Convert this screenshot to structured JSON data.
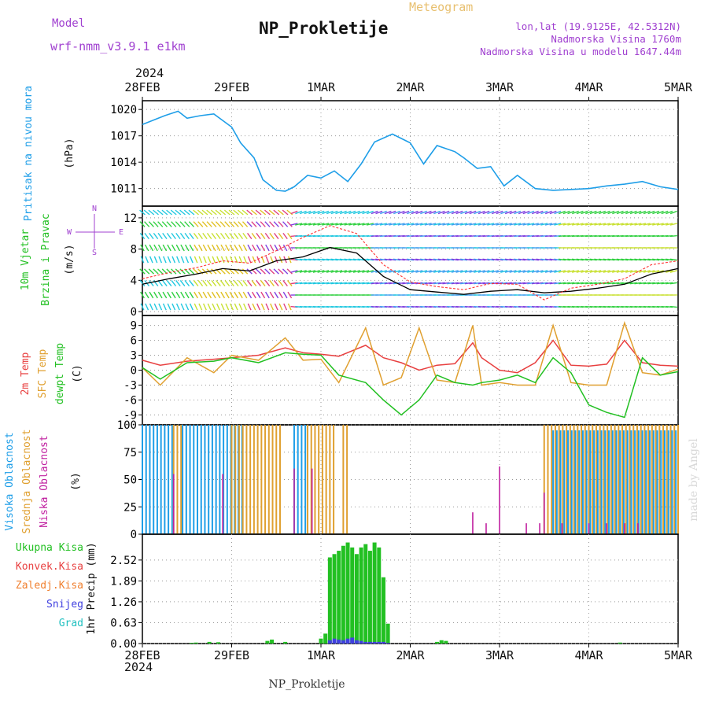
{
  "header": {
    "model_label": "Model",
    "model_name": "wrf-nmm_v3.9.1 e1km",
    "station_title": "NP_Prokletije",
    "meteogram_label": "Meteogram",
    "lonlat": "lon,lat (19.9125E, 42.5312N)",
    "altitude": "Nadmorska Visina 1760m",
    "model_altitude": "Nadmorska Visina u modelu 1647.44m",
    "year_top": "2024",
    "year_bottom": "2024",
    "footer_station": "NP_Prokletije",
    "credit": "made by Angel"
  },
  "colors": {
    "pressure": "#1e9ee8",
    "temp2m": "#e84040",
    "sfc_temp": "#e0a030",
    "dewpt": "#22c022",
    "high_cloud": "#1e9ee8",
    "mid_cloud": "#e0a030",
    "low_cloud": "#c020a0",
    "total_precip": "#22c022",
    "conv_precip": "#e84040",
    "snow": "#4040e0",
    "model_text": "#a040d0"
  },
  "chart_data": [
    {
      "type": "line",
      "panel": "pressure",
      "ylabel": [
        "Pritisak na nivou mora",
        "(hPa)"
      ],
      "x_ticks": [
        "28FEB",
        "29FEB",
        "1MAR",
        "2MAR",
        "3MAR",
        "4MAR",
        "5MAR"
      ],
      "ylim": [
        1009,
        1021
      ],
      "y_ticks": [
        1011,
        1014,
        1017,
        1020
      ],
      "x": [
        0,
        0.25,
        0.4,
        0.5,
        0.65,
        0.8,
        1.0,
        1.1,
        1.25,
        1.35,
        1.5,
        1.6,
        1.7,
        1.85,
        2.0,
        2.15,
        2.3,
        2.45,
        2.6,
        2.8,
        3.0,
        3.15,
        3.3,
        3.5,
        3.6,
        3.75,
        3.9,
        4.05,
        4.2,
        4.4,
        4.6,
        4.8,
        5.0,
        5.2,
        5.4,
        5.6,
        5.8,
        6.0
      ],
      "y": [
        1018.3,
        1019.3,
        1019.8,
        1019.0,
        1019.3,
        1019.5,
        1018.0,
        1016.2,
        1014.5,
        1012.0,
        1010.8,
        1010.7,
        1011.2,
        1012.5,
        1012.2,
        1013.0,
        1011.8,
        1013.8,
        1016.3,
        1017.2,
        1016.2,
        1013.8,
        1015.9,
        1015.2,
        1014.5,
        1013.3,
        1013.5,
        1011.3,
        1012.5,
        1011.0,
        1010.8,
        1010.9,
        1011.0,
        1011.3,
        1011.5,
        1011.8,
        1011.2,
        1010.9
      ]
    },
    {
      "type": "line",
      "panel": "wind",
      "ylabel": [
        "10m Vjetar",
        "Brzina i Pravac",
        "(m/s)"
      ],
      "compass": {
        "n": "N",
        "w": "W",
        "e": "E",
        "s": "S"
      },
      "ylim": [
        -0.5,
        13.5
      ],
      "y_ticks": [
        0,
        4,
        8,
        12
      ],
      "x": [
        0,
        0.3,
        0.6,
        0.9,
        1.2,
        1.5,
        1.8,
        2.1,
        2.4,
        2.7,
        3.0,
        3.3,
        3.6,
        3.9,
        4.2,
        4.5,
        4.8,
        5.1,
        5.4,
        5.7,
        6.0
      ],
      "speed": [
        3.5,
        4.2,
        4.8,
        5.5,
        5.2,
        6.5,
        7.0,
        8.2,
        7.5,
        4.5,
        2.8,
        2.5,
        2.2,
        2.6,
        2.8,
        2.4,
        2.6,
        3.0,
        3.5,
        4.8,
        5.5
      ],
      "gust": [
        4.2,
        5.0,
        5.6,
        6.5,
        6.2,
        7.8,
        9.5,
        11.0,
        10.0,
        6.0,
        3.8,
        3.2,
        2.8,
        3.6,
        3.5,
        1.5,
        3.0,
        3.5,
        4.2,
        6.0,
        6.5
      ]
    },
    {
      "type": "line",
      "panel": "temperature",
      "ylabel": [
        "2m Temp",
        "SFC Temp",
        "dewpt Temp",
        "(C)"
      ],
      "ylim": [
        -11,
        11
      ],
      "y_ticks": [
        -9,
        -6,
        -3,
        0,
        3,
        6,
        9
      ],
      "series": [
        {
          "name": "2m Temp",
          "x": [
            0,
            0.2,
            0.5,
            0.8,
            1.0,
            1.3,
            1.6,
            1.8,
            2.0,
            2.2,
            2.5,
            2.7,
            2.9,
            3.1,
            3.3,
            3.5,
            3.7,
            3.8,
            4.0,
            4.2,
            4.4,
            4.6,
            4.8,
            5.0,
            5.2,
            5.4,
            5.6,
            5.8,
            6.0
          ],
          "values": [
            2.0,
            1.0,
            1.8,
            2.2,
            2.5,
            3.0,
            4.5,
            3.5,
            3.2,
            2.8,
            5.0,
            2.5,
            1.5,
            0.0,
            1.0,
            1.3,
            5.5,
            2.5,
            0.0,
            -0.5,
            1.5,
            6.0,
            1.0,
            0.8,
            1.2,
            6.0,
            1.5,
            1.0,
            0.8
          ]
        },
        {
          "name": "SFC Temp",
          "x": [
            0,
            0.2,
            0.5,
            0.8,
            1.0,
            1.3,
            1.6,
            1.8,
            2.0,
            2.2,
            2.5,
            2.7,
            2.9,
            3.1,
            3.3,
            3.5,
            3.7,
            3.8,
            4.0,
            4.2,
            4.4,
            4.6,
            4.8,
            5.0,
            5.2,
            5.4,
            5.6,
            5.8,
            6.0
          ],
          "values": [
            0.5,
            -3.0,
            2.5,
            -0.5,
            3.0,
            2.0,
            6.5,
            2.0,
            2.2,
            -2.5,
            8.5,
            -3.0,
            -1.5,
            8.5,
            -2.0,
            -2.5,
            9.0,
            -3.0,
            -2.5,
            -3.0,
            -3.0,
            9.0,
            -2.5,
            -3.0,
            -3.0,
            9.5,
            -0.5,
            -1.0,
            0.2
          ]
        },
        {
          "name": "dewpt Temp",
          "x": [
            0,
            0.2,
            0.5,
            0.8,
            1.0,
            1.3,
            1.6,
            1.8,
            2.0,
            2.2,
            2.5,
            2.7,
            2.9,
            3.1,
            3.3,
            3.5,
            3.7,
            3.8,
            4.0,
            4.2,
            4.4,
            4.6,
            4.8,
            5.0,
            5.2,
            5.4,
            5.6,
            5.8,
            6.0
          ],
          "values": [
            0.5,
            -1.8,
            1.5,
            1.8,
            2.5,
            1.5,
            3.5,
            3.2,
            3.0,
            -1.0,
            -2.5,
            -6.0,
            -9.0,
            -6.0,
            -1.0,
            -2.5,
            -3.0,
            -2.5,
            -2.0,
            -1.0,
            -2.5,
            2.5,
            -0.5,
            -7.0,
            -8.5,
            -9.5,
            2.5,
            -1.0,
            -0.3
          ]
        }
      ]
    },
    {
      "type": "bar",
      "panel": "cloud",
      "ylabel": [
        "Visoka Oblacnost",
        "Srednja Oblacnost",
        "Niska Oblacnost",
        "(%)"
      ],
      "ylim": [
        0,
        100
      ],
      "y_ticks": [
        0,
        25,
        50,
        75,
        100
      ],
      "note": "hourly cloud cover; values listed per segment start/end in days from 28FEB",
      "segments": [
        {
          "series": "high",
          "from": 0.0,
          "to": 0.35,
          "value": 100
        },
        {
          "series": "mid",
          "from": 0.35,
          "to": 0.45,
          "value": 100
        },
        {
          "series": "high",
          "from": 0.45,
          "to": 1.15,
          "value": 100
        },
        {
          "series": "mid",
          "from": 1.0,
          "to": 1.55,
          "value": 100
        },
        {
          "series": "high",
          "from": 1.7,
          "to": 1.85,
          "value": 100
        },
        {
          "series": "mid",
          "from": 1.85,
          "to": 2.15,
          "value": 100
        },
        {
          "series": "mid",
          "from": 2.25,
          "to": 2.3,
          "value": 100
        },
        {
          "series": "mid",
          "from": 4.5,
          "to": 6.0,
          "value": 100
        },
        {
          "series": "high",
          "from": 4.6,
          "to": 6.0,
          "value": 95
        }
      ],
      "low_spikes": [
        {
          "x": 0.35,
          "value": 55
        },
        {
          "x": 0.9,
          "value": 55
        },
        {
          "x": 1.7,
          "value": 60
        },
        {
          "x": 1.9,
          "value": 60
        },
        {
          "x": 3.7,
          "value": 20
        },
        {
          "x": 3.85,
          "value": 10
        },
        {
          "x": 4.0,
          "value": 62
        },
        {
          "x": 4.3,
          "value": 10
        },
        {
          "x": 4.45,
          "value": 10
        },
        {
          "x": 4.5,
          "value": 38
        },
        {
          "x": 4.7,
          "value": 10
        },
        {
          "x": 5.0,
          "value": 10
        },
        {
          "x": 5.2,
          "value": 10
        },
        {
          "x": 5.4,
          "value": 10
        },
        {
          "x": 5.55,
          "value": 10
        }
      ]
    },
    {
      "type": "bar",
      "panel": "precip",
      "ylabel": [
        "Ukupna Kisa",
        "Konvek.Kisa",
        "Zaledj.Kisa",
        "Snijeg",
        "Grad",
        "1hr Precip (mm)"
      ],
      "ylim": [
        0,
        3.3
      ],
      "y_ticks": [
        0,
        0.63,
        1.26,
        1.89,
        2.52
      ],
      "x_ticks": [
        "28FEB",
        "29FEB",
        "1MAR",
        "2MAR",
        "3MAR",
        "4MAR",
        "5MAR"
      ],
      "x": [
        0.55,
        0.6,
        0.75,
        0.85,
        1.4,
        1.45,
        1.6,
        2.0,
        2.05,
        2.1,
        2.15,
        2.2,
        2.25,
        2.3,
        2.35,
        2.4,
        2.45,
        2.5,
        2.55,
        2.6,
        2.65,
        2.7,
        2.75,
        3.3,
        3.35,
        3.4,
        5.35
      ],
      "values": [
        0.02,
        0.03,
        0.05,
        0.04,
        0.08,
        0.12,
        0.05,
        0.15,
        0.3,
        2.6,
        2.7,
        2.8,
        2.95,
        3.05,
        2.9,
        2.7,
        2.9,
        3.0,
        2.8,
        3.05,
        2.9,
        2.0,
        0.6,
        0.05,
        0.1,
        0.08,
        0.03
      ],
      "snow_values": [
        0,
        0,
        0,
        0,
        0,
        0,
        0,
        0,
        0,
        0.1,
        0.15,
        0.12,
        0.1,
        0.15,
        0.18,
        0.1,
        0.08,
        0.05,
        0.05,
        0.05,
        0.05,
        0.05,
        0.02,
        0,
        0,
        0,
        0
      ]
    }
  ]
}
